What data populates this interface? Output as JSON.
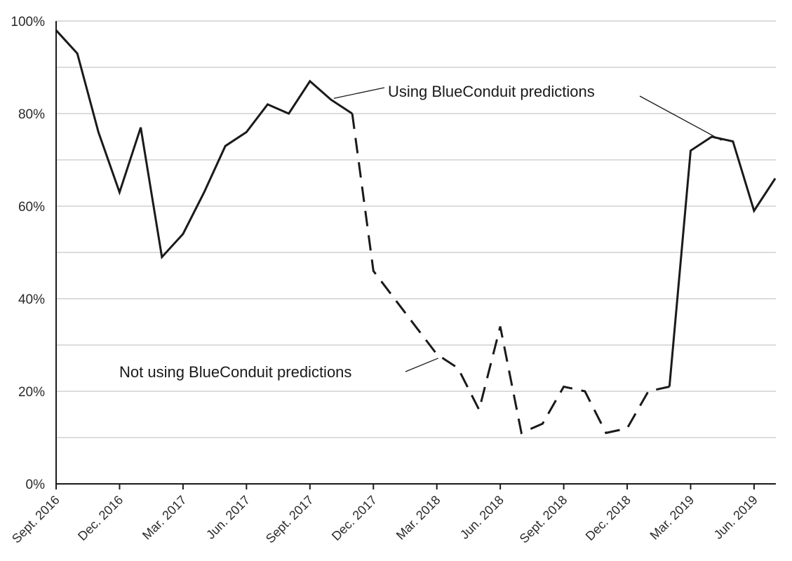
{
  "chart_data": {
    "type": "line",
    "title": "",
    "xlabel": "",
    "ylabel": "",
    "ylim": [
      0,
      100
    ],
    "y_ticks": [
      "0%",
      "20%",
      "40%",
      "60%",
      "80%",
      "100%"
    ],
    "x_tick_labels": [
      "Sept. 2016",
      "Dec. 2016",
      "Mar. 2017",
      "Jun. 2017",
      "Sept. 2017",
      "Dec. 2017",
      "Mar. 2018",
      "Jun. 2018",
      "Sept. 2018",
      "Dec. 2018",
      "Mar. 2019",
      "Jun. 2019"
    ],
    "x_label_month_index": [
      0,
      3,
      6,
      9,
      12,
      15,
      18,
      21,
      24,
      27,
      30,
      33
    ],
    "grid": "horizontal",
    "series": [
      {
        "name": "Using BlueConduit predictions",
        "style": "solid",
        "segments": [
          [
            [
              0,
              98
            ],
            [
              1,
              93
            ],
            [
              2,
              76
            ],
            [
              3,
              63
            ],
            [
              4,
              77
            ],
            [
              5,
              49
            ],
            [
              6,
              54
            ],
            [
              7,
              63
            ],
            [
              8,
              73
            ],
            [
              9,
              76
            ],
            [
              10,
              82
            ],
            [
              11,
              80
            ],
            [
              12,
              87
            ],
            [
              13,
              83
            ],
            [
              14,
              80
            ]
          ],
          [
            [
              29,
              21
            ],
            [
              30,
              72
            ],
            [
              31,
              75
            ],
            [
              32,
              74
            ],
            [
              33,
              59
            ],
            [
              34,
              66
            ]
          ]
        ]
      },
      {
        "name": "Not using BlueConduit predictions",
        "style": "dashed",
        "segments": [
          [
            [
              14,
              80
            ],
            [
              15,
              46
            ],
            [
              16,
              40
            ],
            [
              17,
              34
            ],
            [
              18,
              28
            ],
            [
              19,
              25
            ],
            [
              20,
              16
            ],
            [
              21,
              34
            ],
            [
              22,
              11
            ],
            [
              23,
              13
            ],
            [
              24,
              21
            ],
            [
              25,
              20
            ],
            [
              26,
              11
            ],
            [
              27,
              12
            ],
            [
              28,
              20
            ],
            [
              29,
              21
            ]
          ]
        ]
      }
    ],
    "annotations": [
      {
        "text": "Using BlueConduit predictions",
        "points_to": [
          [
            13,
            83
          ],
          [
            31,
            73
          ]
        ]
      },
      {
        "text": "Not using BlueConduit predictions",
        "points_to": [
          [
            18,
            27
          ]
        ]
      }
    ]
  }
}
